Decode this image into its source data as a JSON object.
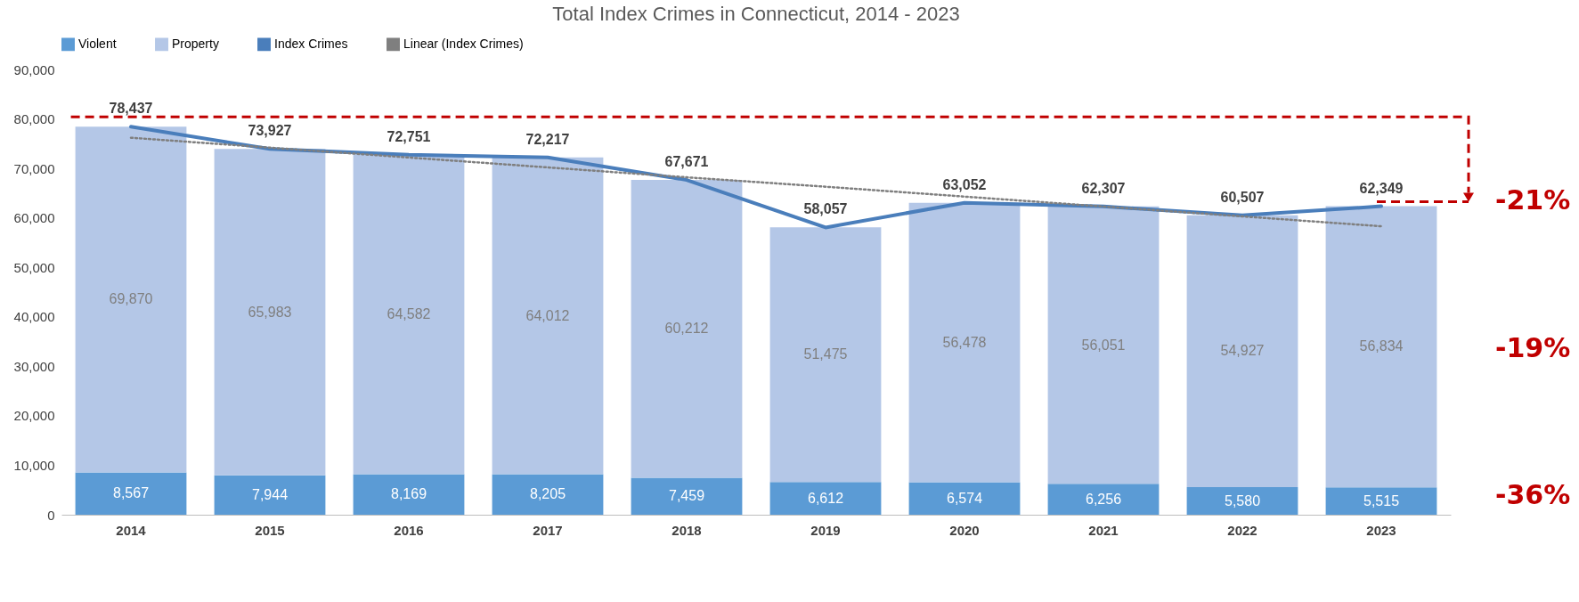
{
  "chart_data": {
    "type": "bar",
    "title": "Total Index Crimes in Connecticut, 2014 - 2023",
    "categories": [
      "2014",
      "2015",
      "2016",
      "2017",
      "2018",
      "2019",
      "2020",
      "2021",
      "2022",
      "2023"
    ],
    "stacked": true,
    "ylim": [
      0,
      90000
    ],
    "yticks": [
      0,
      {
        "value": 10000,
        "label": "10,000"
      },
      {
        "value": 20000,
        "label": "20,000"
      },
      {
        "value": 30000,
        "label": "30,000"
      },
      {
        "value": 40000,
        "label": "40,000"
      },
      {
        "value": 50000,
        "label": "50,000"
      },
      {
        "value": 60000,
        "label": "60,000"
      },
      {
        "value": 70000,
        "label": "70,000"
      },
      {
        "value": 80000,
        "label": "80,000"
      },
      {
        "value": 90000,
        "label": "90,000"
      }
    ],
    "legend": "top",
    "annotations": [
      {
        "text": "-21%",
        "x": "2023",
        "y": 62349
      },
      "-19%",
      "-36%"
    ],
    "series": [
      {
        "name": "Violent",
        "color": "#5b9bd5",
        "values": [
          8567,
          7944,
          8169,
          8205,
          7459,
          6612,
          6574,
          6256,
          5580,
          5515
        ],
        "value_labels": [
          "8,567",
          "7,944",
          "8,169",
          "8,205",
          "7,459",
          "6,612",
          "6,574",
          "6,256",
          "5,580",
          "5,515"
        ]
      },
      {
        "name": "Property",
        "color": "#b4c7e7",
        "values": [
          69870,
          65983,
          64582,
          64012,
          60212,
          51475,
          56478,
          56051,
          54927,
          56834
        ],
        "value_labels": [
          "69,870",
          "65,983",
          "64,582",
          "64,012",
          "60,212",
          "51,475",
          "56,478",
          "56,051",
          "54,927",
          "56,834"
        ]
      },
      {
        "name": "Index Crimes",
        "type": "line",
        "color": "#4a7ebb",
        "values": [
          78437,
          73927,
          72751,
          72217,
          67671,
          58057,
          63052,
          62307,
          60507,
          62349
        ],
        "value_labels": [
          "78,437",
          "73,927",
          "72,751",
          "72,217",
          "67,671",
          "58,057",
          "63,052",
          "62,307",
          "60,507",
          "62,349"
        ]
      },
      {
        "name": "Linear (Index Crimes)",
        "type": "line",
        "color": "#7f7f7f",
        "line_style": "dotted",
        "values": [
          76200,
          74200,
          72200,
          70200,
          68200,
          66300,
          64300,
          62300,
          60300,
          58300
        ]
      }
    ]
  }
}
